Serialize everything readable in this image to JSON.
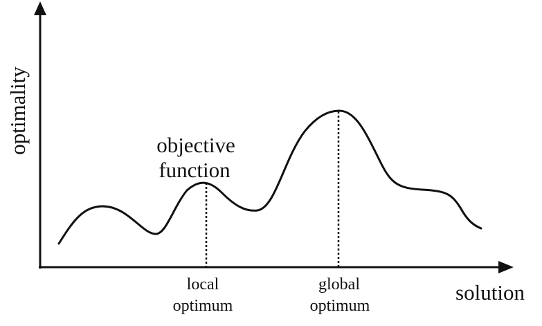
{
  "diagram": {
    "y_axis_label": "optimality",
    "x_axis_label": "solution",
    "curve_label_line1": "objective",
    "curve_label_line2": "function",
    "local_label_line1": "local",
    "local_label_line2": "optimum",
    "global_label_line1": "global",
    "global_label_line2": "optimum"
  }
}
